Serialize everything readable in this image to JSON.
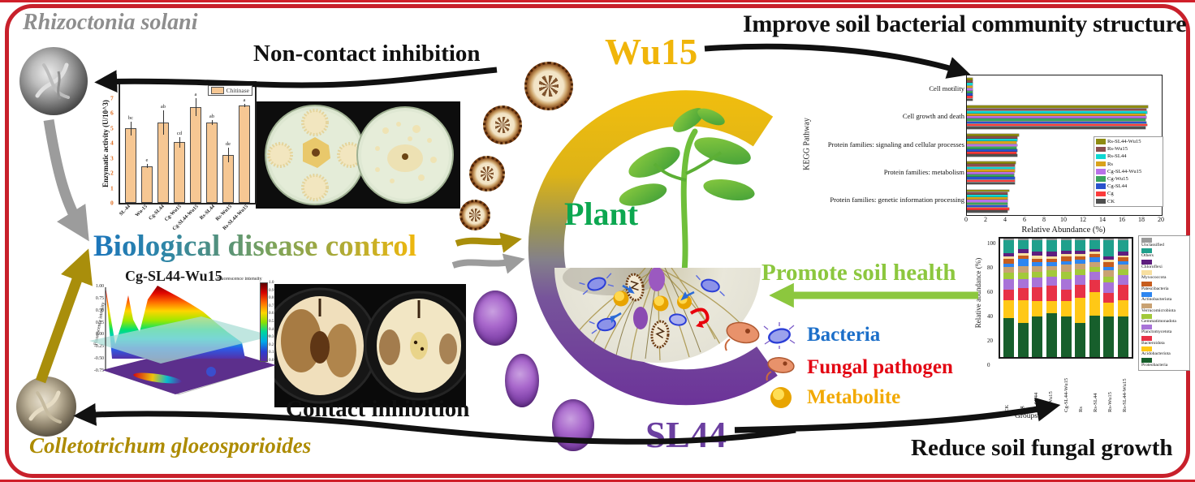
{
  "frame": {
    "border_color": "#C8202B"
  },
  "labels": {
    "rhizoctonia_solani": "Rhizoctonia solani",
    "colletotrichum_gloeosporioides": "Colletotrichum gloeosporioides",
    "non_contact_inhibition": "Non-contact inhibition",
    "contact_inhibition": "Contact inhibition",
    "improve_soil": "Improve soil bacterial community structure",
    "reduce_soil": "Reduce soil fungal growth",
    "promote_soil_health": "Promote soil health",
    "biological_disease_control": "Biological disease control",
    "wu15": "Wu15",
    "sl44": "SL44",
    "plant": "Plant"
  },
  "center_legend": {
    "items": [
      {
        "label": "Bacteria",
        "color": "#1C6FC9",
        "icon": "bacteria-icon"
      },
      {
        "label": "Fungal pathogen",
        "color": "#E30613",
        "icon": "fungal-pathogen-icon"
      },
      {
        "label": "Metabolite",
        "color": "#F2A900",
        "icon": "metabolite-icon"
      }
    ]
  },
  "chart_data": [
    {
      "type": "bar",
      "name": "chitinase-activity",
      "legend": [
        "Chitinase"
      ],
      "bar_color": "#F6C793",
      "ylabel": "Enzymatic activity (U/10^3)",
      "ylim": [
        0,
        8
      ],
      "yticks": [
        0,
        1,
        2,
        3,
        4,
        5,
        6,
        7,
        8
      ],
      "categories": [
        "SL-44",
        "Wu-15",
        "Cg-SL44",
        "Cg-Wu15",
        "Cg-SL44-Wu15",
        "Rs-SL44",
        "Rs-Wu15",
        "Rs-SL44-Wu15"
      ],
      "values": [
        4.95,
        2.45,
        5.35,
        4.05,
        6.4,
        5.35,
        3.2,
        6.5
      ],
      "errors": [
        0.45,
        0.15,
        0.8,
        0.35,
        0.6,
        0.15,
        0.5,
        0.12
      ],
      "sig_letters": [
        "bc",
        "e",
        "ab",
        "cd",
        "a",
        "ab",
        "de",
        "a"
      ]
    },
    {
      "type": "bar-horizontal-grouped",
      "name": "kegg-pathway-abundance",
      "xlabel": "Relative Abundance (%)",
      "ylabel": "KEGG Pathway",
      "xlim": [
        0,
        20
      ],
      "xticks": [
        0,
        2,
        4,
        6,
        8,
        10,
        12,
        14,
        16,
        18,
        20
      ],
      "categories": [
        "Cell motility",
        "Cell growth and death",
        "Protein families: signaling and cellular processes",
        "Protein families: metabolism",
        "Protein families: genetic information processing"
      ],
      "series": [
        {
          "name": "Rs-SL44-Wu15",
          "color": "#8E8B12",
          "values": [
            0.6,
            18.6,
            5.3,
            5.0,
            4.3
          ]
        },
        {
          "name": "Rs-Wu15",
          "color": "#8A4F4F",
          "values": [
            0.6,
            18.4,
            5.2,
            4.9,
            4.2
          ]
        },
        {
          "name": "Rs-SL44",
          "color": "#0FD8D2",
          "values": [
            0.6,
            18.5,
            5.2,
            4.9,
            4.2
          ]
        },
        {
          "name": "Rs",
          "color": "#D9A21B",
          "values": [
            0.6,
            18.3,
            5.1,
            4.9,
            4.2
          ]
        },
        {
          "name": "Cg-SL44-Wu15",
          "color": "#B871E8",
          "values": [
            0.6,
            18.4,
            5.2,
            4.8,
            4.2
          ]
        },
        {
          "name": "Cg-Wu15",
          "color": "#3BA45D",
          "values": [
            0.6,
            18.3,
            5.1,
            4.8,
            4.2
          ]
        },
        {
          "name": "Cg-SL44",
          "color": "#2A52CC",
          "values": [
            0.6,
            18.4,
            5.2,
            4.9,
            4.2
          ]
        },
        {
          "name": "Cg",
          "color": "#FB3B3B",
          "values": [
            0.6,
            18.5,
            5.1,
            4.9,
            4.3
          ]
        },
        {
          "name": "CK",
          "color": "#4F4F4F",
          "values": [
            0.6,
            18.3,
            5.2,
            4.9,
            4.2
          ]
        }
      ],
      "legend_position": "right-inside"
    },
    {
      "type": "stacked-bar",
      "name": "soil-community-composition",
      "xlabel": "Groups",
      "ylabel": "Relative abundance (%)",
      "ylim": [
        0,
        100
      ],
      "yticks": [
        0,
        20,
        40,
        60,
        80,
        100
      ],
      "categories": [
        "CK",
        "Cg",
        "Cg-SL44",
        "Cg-Wu15",
        "Cg-SL44-Wu15",
        "Rs",
        "Rs-SL44",
        "Rs-Wu15",
        "Rs-SL44-Wu15"
      ],
      "series": [
        {
          "name": "Proteobacteria",
          "color": "#175F2C",
          "values": [
            33,
            29,
            34,
            37,
            34,
            29,
            35,
            34,
            34
          ]
        },
        {
          "name": "Acidobacteriota",
          "color": "#FFC816",
          "values": [
            15,
            19,
            13,
            10,
            13,
            21,
            20,
            12,
            14
          ]
        },
        {
          "name": "Bacteroidota",
          "color": "#E83246",
          "values": [
            9,
            10,
            12,
            13,
            10,
            11,
            10,
            8,
            13
          ]
        },
        {
          "name": "Planctomycetota",
          "color": "#A873D8",
          "values": [
            9,
            8,
            8,
            8,
            9,
            8,
            7,
            9,
            8
          ]
        },
        {
          "name": "Gemmatimonadota",
          "color": "#A2C93A",
          "values": [
            5,
            5,
            5,
            5,
            6,
            5,
            4,
            5,
            5
          ]
        },
        {
          "name": "Verrucomicrobiota",
          "color": "#C9A273",
          "values": [
            5,
            6,
            5,
            4,
            6,
            5,
            4,
            5,
            4
          ]
        },
        {
          "name": "Actinobacteriota",
          "color": "#2E86F0",
          "values": [
            3,
            6,
            3,
            3,
            3,
            3,
            4,
            3,
            3
          ]
        },
        {
          "name": "Patescibacteria",
          "color": "#C65D1E",
          "values": [
            4,
            3,
            3,
            3,
            4,
            3,
            3,
            4,
            3
          ]
        },
        {
          "name": "Myxococcota",
          "color": "#F7DFA0",
          "values": [
            2,
            2,
            3,
            2,
            2,
            2,
            2,
            2,
            2
          ]
        },
        {
          "name": "Chloroflexi",
          "color": "#5E1E7E",
          "values": [
            3,
            3,
            3,
            4,
            3,
            3,
            2,
            3,
            3
          ]
        },
        {
          "name": "Others",
          "color": "#1FA08C",
          "values": [
            11,
            8,
            10,
            10,
            9,
            9,
            8,
            14,
            10
          ]
        },
        {
          "name": "Unclassified",
          "color": "#9A9A9A",
          "values": [
            1,
            1,
            1,
            1,
            1,
            1,
            1,
            1,
            1
          ]
        }
      ]
    },
    {
      "type": "surface-3d",
      "name": "fluorescence-surface",
      "title": "Cg-SL44-Wu15",
      "zlabel": "Fluorescence intensity",
      "zticks": [
        "1.00",
        "0.75",
        "0.50",
        "0.25",
        "0.00",
        "-0.25",
        "-0.50",
        "-0.75"
      ],
      "colorbar_label": "Fluorescence intensity",
      "colorbar_ticks": [
        "1.0",
        "0.9",
        "0.8",
        "0.7",
        "0.6",
        "0.5",
        "0.4",
        "0.3",
        "0.2",
        "0.1",
        "0.0"
      ]
    }
  ]
}
